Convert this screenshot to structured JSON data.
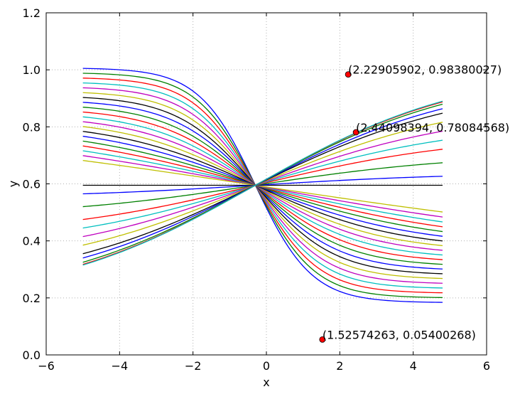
{
  "chart_data": {
    "type": "line",
    "title": "",
    "xlabel": "x",
    "ylabel": "y",
    "xlim": [
      -6,
      6
    ],
    "ylim": [
      0.0,
      1.2
    ],
    "x_ticks": [
      "−6",
      "−4",
      "−2",
      "0",
      "2",
      "4",
      "6"
    ],
    "x_tick_values": [
      -6,
      -4,
      -2,
      0,
      2,
      4,
      6
    ],
    "y_ticks": [
      "0.0",
      "0.2",
      "0.4",
      "0.6",
      "0.8",
      "1.0",
      "1.2"
    ],
    "y_tick_values": [
      0.0,
      0.2,
      0.4,
      0.6,
      0.8,
      1.0,
      1.2
    ],
    "grid": true,
    "x_range": [
      -5.0,
      4.8
    ],
    "series_colors": [
      "#0000ff",
      "#008000",
      "#ff0000",
      "#00bfbf",
      "#bf00bf",
      "#bfbf00",
      "#000000"
    ],
    "series_description": "Family of logistic curves y = 1/(1+exp(-k(x-x0))) + c crossing near (-0.3, 0.595)",
    "series": [
      {
        "k": 1.0
      },
      {
        "k": 0.95
      },
      {
        "k": 0.9
      },
      {
        "k": 0.85
      },
      {
        "k": 0.8
      },
      {
        "k": 0.75
      },
      {
        "k": 0.7
      },
      {
        "k": 0.65
      },
      {
        "k": 0.6
      },
      {
        "k": 0.55
      },
      {
        "k": 0.5
      },
      {
        "k": 0.45
      },
      {
        "k": 0.4
      },
      {
        "k": 0.35
      },
      {
        "k": 0.3
      },
      {
        "k": 0.25
      },
      {
        "k": 0.2
      },
      {
        "k": 0.15
      },
      {
        "k": 0.1
      },
      {
        "k": 0.05
      },
      {
        "k": 0.0
      },
      {
        "k": -0.02
      },
      {
        "k": -0.05
      },
      {
        "k": -0.08
      },
      {
        "k": -0.1
      },
      {
        "k": -0.12
      },
      {
        "k": -0.14
      },
      {
        "k": -0.16
      },
      {
        "k": -0.17
      },
      {
        "k": -0.18
      },
      {
        "k": -0.185
      },
      {
        "k": -0.19
      }
    ],
    "points": [
      {
        "x": 2.22905902,
        "y": 0.98380027,
        "label": "(2.22905902, 0.98380027)"
      },
      {
        "x": 2.44098394,
        "y": 0.78084568,
        "label": "(2.44098394, 0.78084568)"
      },
      {
        "x": 1.52574263,
        "y": 0.05400268,
        "label": "(1.52574263, 0.05400268)"
      }
    ],
    "point_color": "#ff0000"
  }
}
